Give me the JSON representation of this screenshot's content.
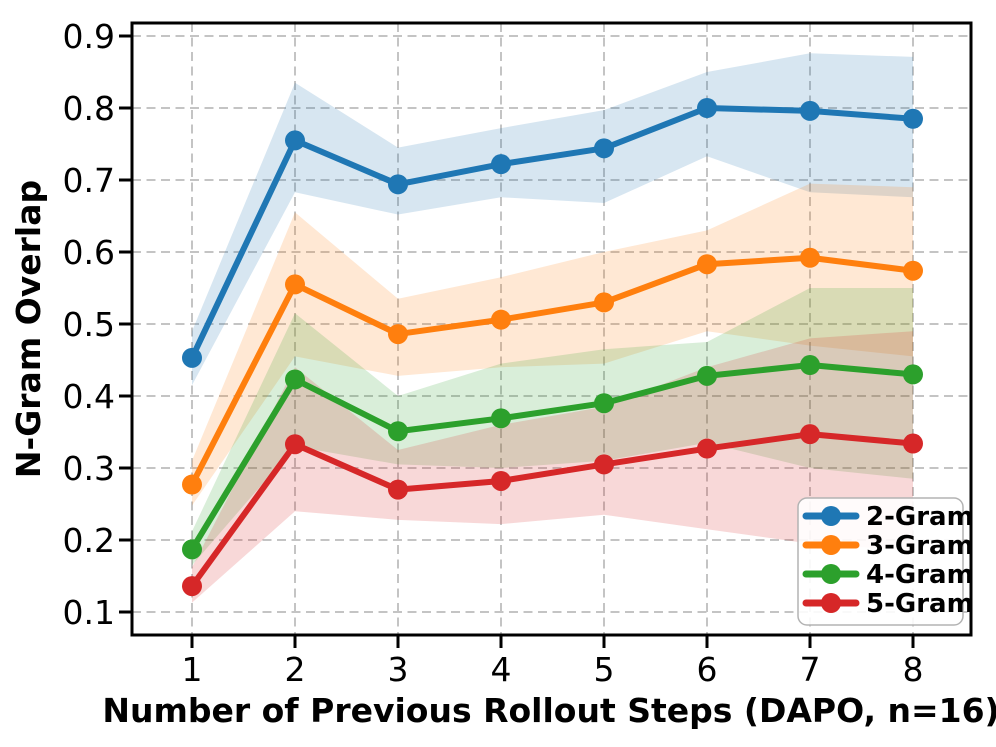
{
  "chart_data": {
    "type": "line",
    "title": "",
    "xlabel": "Number of Previous Rollout Steps (DAPO, n=16)",
    "ylabel": "N-Gram Overlap",
    "x": [
      1,
      2,
      3,
      4,
      5,
      6,
      7,
      8
    ],
    "x_tick_labels": [
      "1",
      "2",
      "3",
      "4",
      "5",
      "6",
      "7",
      "8"
    ],
    "y_ticks": [
      0.1,
      0.2,
      0.3,
      0.4,
      0.5,
      0.6,
      0.7,
      0.8,
      0.9
    ],
    "y_tick_labels": [
      "0.1",
      "0.2",
      "0.3",
      "0.4",
      "0.5",
      "0.6",
      "0.7",
      "0.8",
      "0.9"
    ],
    "xlim": [
      0.42,
      8.56
    ],
    "ylim": [
      0.068,
      0.918
    ],
    "grid": {
      "visible": true,
      "style": "dashed",
      "color": "#c4c4c4"
    },
    "band_opacity": 0.18,
    "legend": {
      "position": "lower-right",
      "items": [
        "2-Gram",
        "3-Gram",
        "4-Gram",
        "5-Gram"
      ]
    },
    "series": [
      {
        "name": "2-Gram",
        "color": "#1f77b4",
        "values": [
          0.453,
          0.755,
          0.694,
          0.722,
          0.744,
          0.8,
          0.796,
          0.785
        ],
        "band_upper": [
          0.49,
          0.835,
          0.745,
          0.772,
          0.797,
          0.85,
          0.876,
          0.871
        ],
        "band_lower": [
          0.415,
          0.683,
          0.652,
          0.676,
          0.668,
          0.733,
          0.683,
          0.676
        ]
      },
      {
        "name": "3-Gram",
        "color": "#ff7f0e",
        "values": [
          0.277,
          0.555,
          0.486,
          0.506,
          0.53,
          0.583,
          0.592,
          0.574
        ],
        "band_upper": [
          0.31,
          0.655,
          0.535,
          0.565,
          0.6,
          0.63,
          0.695,
          0.69
        ],
        "band_lower": [
          0.248,
          0.455,
          0.428,
          0.44,
          0.445,
          0.49,
          0.47,
          0.455
        ]
      },
      {
        "name": "4-Gram",
        "color": "#2ca02c",
        "values": [
          0.187,
          0.423,
          0.351,
          0.369,
          0.39,
          0.428,
          0.443,
          0.43
        ],
        "band_upper": [
          0.212,
          0.515,
          0.4,
          0.445,
          0.465,
          0.475,
          0.55,
          0.55
        ],
        "band_lower": [
          0.165,
          0.33,
          0.305,
          0.3,
          0.31,
          0.335,
          0.3,
          0.285
        ]
      },
      {
        "name": "5-Gram",
        "color": "#d62728",
        "values": [
          0.136,
          0.333,
          0.27,
          0.282,
          0.305,
          0.327,
          0.347,
          0.334
        ],
        "band_upper": [
          0.162,
          0.44,
          0.325,
          0.36,
          0.385,
          0.44,
          0.48,
          0.49
        ],
        "band_lower": [
          0.113,
          0.24,
          0.228,
          0.222,
          0.235,
          0.215,
          0.195,
          0.185
        ]
      }
    ]
  }
}
